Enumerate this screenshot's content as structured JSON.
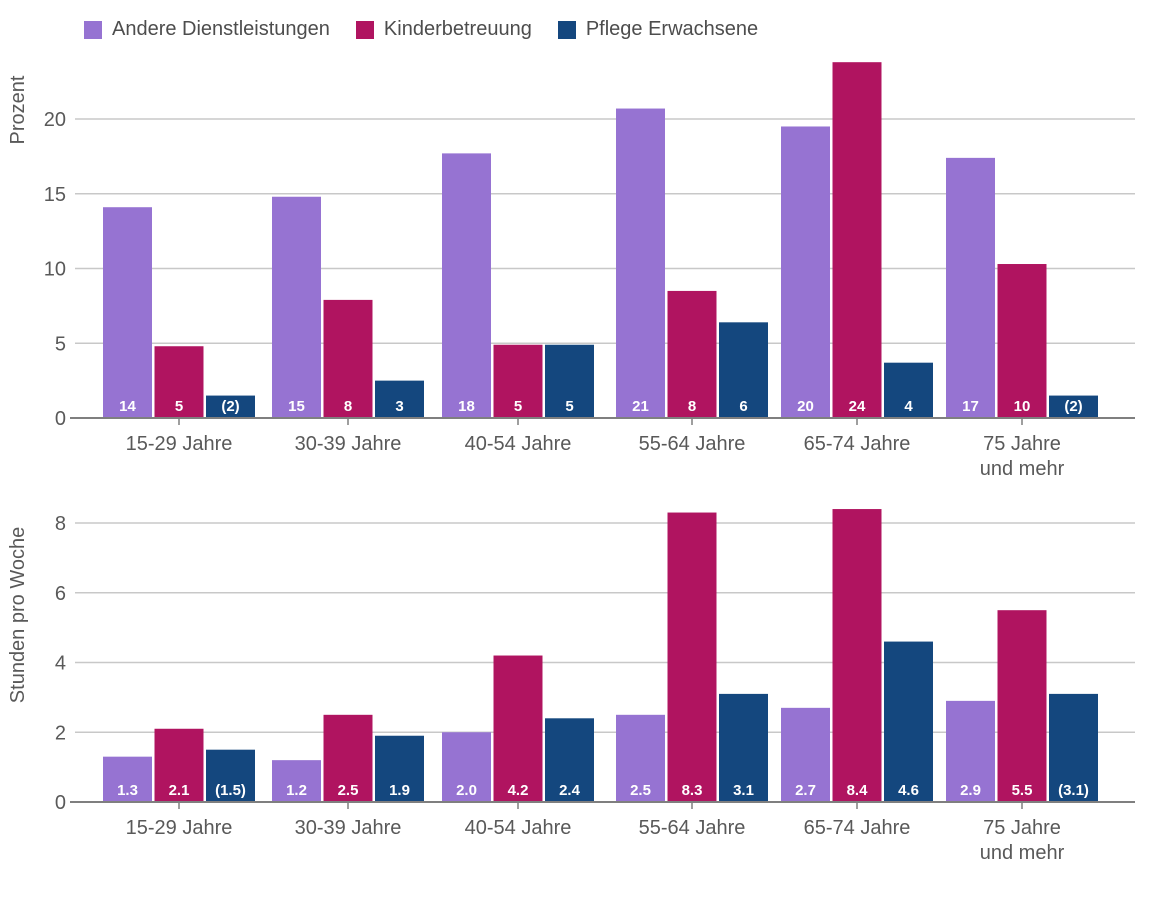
{
  "colors": {
    "andere_dienstleistungen": "#9673D2",
    "kinderbetreuung": "#B01460",
    "pflege_erwachsene": "#14477E",
    "bar_label": "#FFFFFF",
    "text_gray": "#595959",
    "axis_gray": "#7F7F7F",
    "grid_gray": "#C8C8C8"
  },
  "legend": {
    "items": [
      {
        "label": "Andere Dienstleistungen",
        "color": "#9673D2"
      },
      {
        "label": "Kinderbetreuung",
        "color": "#B01460"
      },
      {
        "label": "Pflege Erwachsene",
        "color": "#14477E"
      }
    ]
  },
  "chart_data": [
    {
      "type": "bar",
      "title": "",
      "ylabel": "Prozent",
      "xlabel": "",
      "categories": [
        "15-29 Jahre",
        "30-39 Jahre",
        "40-54 Jahre",
        "55-64 Jahre",
        "65-74 Jahre",
        "75 Jahre\nund mehr"
      ],
      "series": [
        {
          "name": "Andere Dienstleistungen",
          "color": "#9673D2",
          "values": [
            14.1,
            14.8,
            17.7,
            20.7,
            19.5,
            17.4
          ],
          "labels": [
            "14",
            "15",
            "18",
            "21",
            "20",
            "17"
          ]
        },
        {
          "name": "Kinderbetreuung",
          "color": "#B01460",
          "values": [
            4.8,
            7.9,
            4.9,
            8.5,
            23.8,
            10.3
          ],
          "labels": [
            "5",
            "8",
            "5",
            "8",
            "24",
            "10"
          ]
        },
        {
          "name": "Pflege Erwachsene",
          "color": "#14477E",
          "values": [
            1.5,
            2.5,
            4.9,
            6.4,
            3.7,
            1.5
          ],
          "labels": [
            "(2)",
            "3",
            "5",
            "6",
            "4",
            "(2)"
          ]
        }
      ],
      "ylim": [
        0,
        24.2
      ],
      "yticks": [
        0,
        5,
        10,
        15,
        20
      ],
      "grid": true,
      "legend_position": "top"
    },
    {
      "type": "bar",
      "title": "",
      "ylabel": "Stunden pro Woche",
      "xlabel": "",
      "categories": [
        "15-29 Jahre",
        "30-39 Jahre",
        "40-54 Jahre",
        "55-64 Jahre",
        "65-74 Jahre",
        "75 Jahre\nund mehr"
      ],
      "series": [
        {
          "name": "Andere Dienstleistungen",
          "color": "#9673D2",
          "values": [
            1.3,
            1.2,
            2.0,
            2.5,
            2.7,
            2.9
          ],
          "labels": [
            "1.3",
            "1.2",
            "2.0",
            "2.5",
            "2.7",
            "2.9"
          ]
        },
        {
          "name": "Kinderbetreuung",
          "color": "#B01460",
          "values": [
            2.1,
            2.5,
            4.2,
            8.3,
            8.4,
            5.5
          ],
          "labels": [
            "2.1",
            "2.5",
            "4.2",
            "8.3",
            "8.4",
            "5.5"
          ]
        },
        {
          "name": "Pflege Erwachsene",
          "color": "#14477E",
          "values": [
            1.5,
            1.9,
            2.4,
            3.1,
            4.6,
            3.1
          ],
          "labels": [
            "(1.5)",
            "1.9",
            "2.4",
            "3.1",
            "4.6",
            "(3.1)"
          ]
        }
      ],
      "ylim": [
        0,
        8.6
      ],
      "yticks": [
        0,
        2,
        4,
        6,
        8
      ],
      "grid": true,
      "legend_position": "none"
    }
  ]
}
